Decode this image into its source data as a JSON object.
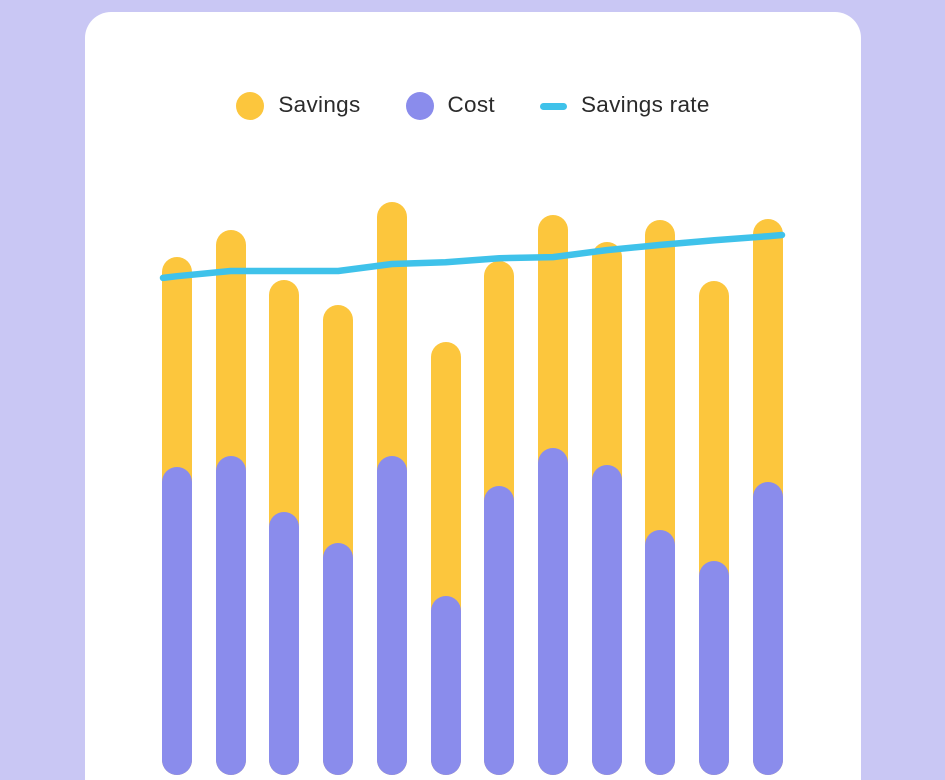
{
  "page": {
    "background_color": "#C9C7F4",
    "card_color": "#FFFFFF",
    "text_color": "#2B2B2B"
  },
  "legend": {
    "items": [
      {
        "label": "Savings",
        "marker": "circle",
        "color": "#FCC63D"
      },
      {
        "label": "Cost",
        "marker": "circle",
        "color": "#8A8CEC"
      },
      {
        "label": "Savings rate",
        "marker": "line",
        "color": "#3FC2EA"
      }
    ]
  },
  "chart_data": {
    "type": "bar",
    "subtype": "rounded-overlay-bars-with-line",
    "title": "",
    "xlabel": "",
    "ylabel": "",
    "categories": [
      "",
      "",
      "",
      "",
      "",
      "",
      "",
      "",
      "",
      "",
      "",
      ""
    ],
    "axes_visible": false,
    "grid": false,
    "legend_position": "top-center",
    "value_scale": "percent of plot height (chart shows no labeled axes)",
    "ylim": [
      0,
      100
    ],
    "series": [
      {
        "name": "Savings",
        "role": "bar-total-height",
        "color": "#FCC63D",
        "values": [
          89.3,
          94.0,
          85.3,
          81.0,
          98.8,
          74.7,
          88.6,
          96.6,
          91.9,
          95.7,
          85.2,
          95.9
        ]
      },
      {
        "name": "Cost",
        "role": "bar-overlay-height",
        "color": "#8A8CEC",
        "values": [
          53.1,
          55.0,
          45.3,
          40.0,
          55.0,
          30.9,
          49.8,
          56.3,
          53.4,
          42.2,
          36.9,
          50.5
        ]
      }
    ],
    "line_series": {
      "name": "Savings rate",
      "color": "#3FC2EA",
      "stroke_width": 6.5,
      "start_value": 85.7,
      "values": [
        86.0,
        86.9,
        86.9,
        86.9,
        88.1,
        88.4,
        89.1,
        89.3,
        90.5,
        91.4,
        92.2,
        92.9
      ],
      "end_value": 93.1
    }
  }
}
